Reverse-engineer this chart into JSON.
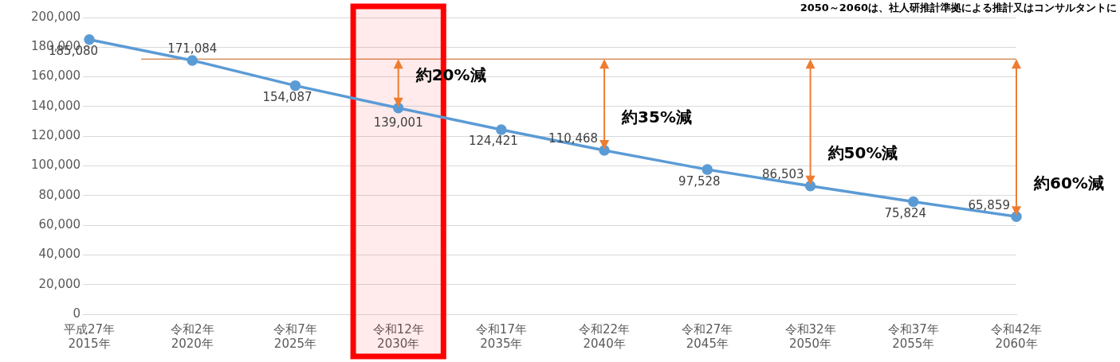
{
  "chart_data": {
    "type": "line",
    "categories": [
      "平成27年\n2015年",
      "令和2年\n2020年",
      "令和7年\n2025年",
      "令和12年\n2030年",
      "令和17年\n2035年",
      "令和22年\n2040年",
      "令和27年\n2045年",
      "令和32年\n2050年",
      "令和37年\n2055年",
      "令和42年\n2060年"
    ],
    "series": [
      {
        "color": "#5b9bd5",
        "values": [
          185080,
          171084,
          154087,
          139001,
          124421,
          110468,
          97528,
          86503,
          75824,
          65859
        ],
        "value_labels": [
          "185,080",
          "171,084",
          "154,087",
          "139,001",
          "124,421",
          "110,468",
          "97,528",
          "86,503",
          "75,824",
          "65,859"
        ]
      }
    ],
    "ylim": [
      0,
      200000
    ],
    "yticks": [
      {
        "value": 0,
        "label": "0"
      },
      {
        "value": 20000,
        "label": "20,000"
      },
      {
        "value": 40000,
        "label": "40,000"
      },
      {
        "value": 60000,
        "label": "60,000"
      },
      {
        "value": 80000,
        "label": "80,000"
      },
      {
        "value": 100000,
        "label": "100,000"
      },
      {
        "value": 120000,
        "label": "120,000"
      },
      {
        "value": 140000,
        "label": "140,000"
      },
      {
        "value": 160000,
        "label": "160,000"
      },
      {
        "value": 180000,
        "label": "180,000"
      },
      {
        "value": 200000,
        "label": "200,000"
      }
    ],
    "grid": "y",
    "legend": false,
    "marker": "circle",
    "line_style": "solid",
    "ref_lines": [
      {
        "axis": "y",
        "value": 172000,
        "color": "#c55a11"
      }
    ],
    "bands": [
      {
        "axis": "x",
        "from": "令和12年\n2030年",
        "to": "令和12年\n2030年",
        "color": "#ff0000"
      }
    ],
    "annotations": [
      "2050～2060は、社人研推計準拠による推計又はコンサルタントに",
      {
        "text": "約20%減",
        "x": "令和12年\n2030年",
        "y": 139001
      },
      {
        "text": "約35%減",
        "x": "令和22年\n2040年",
        "y": 110468
      },
      {
        "text": "約50%減",
        "x": "令和32年\n2050年",
        "y": 86503
      },
      {
        "text": "約60%減",
        "x": "令和42年\n2060年",
        "y": 65859
      }
    ]
  }
}
